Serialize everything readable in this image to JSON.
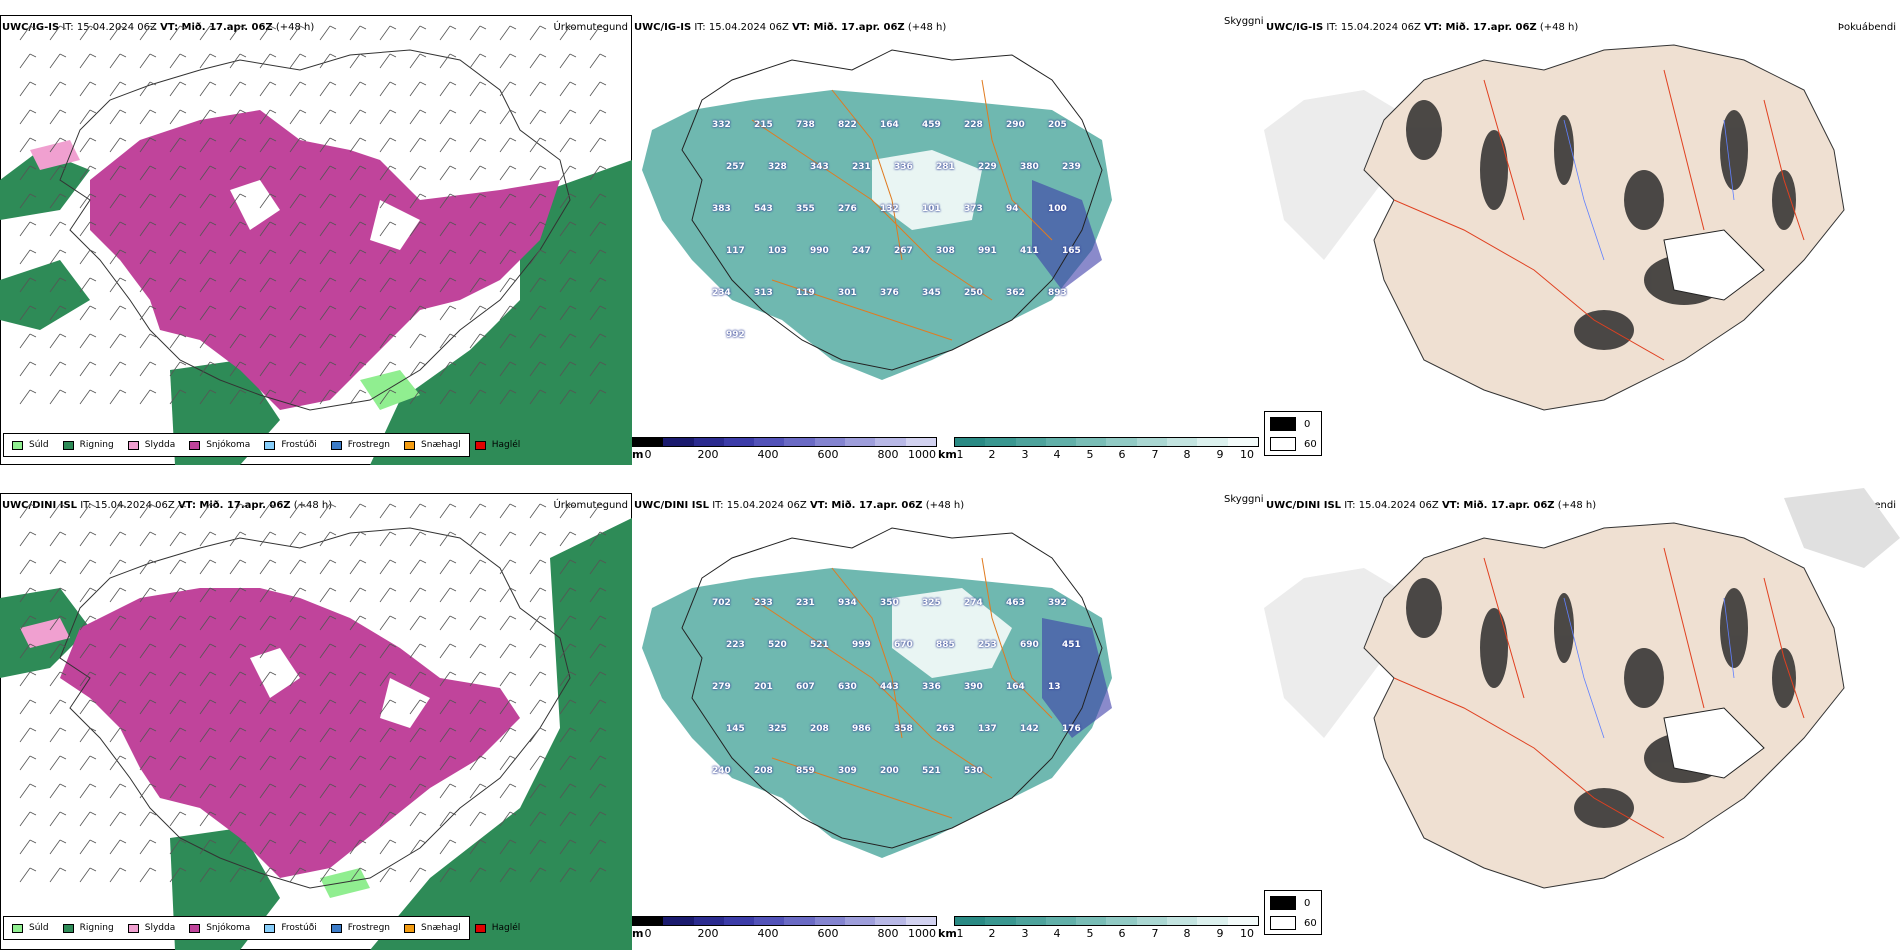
{
  "rows": [
    {
      "model": "UWC/IG-IS",
      "it_label": "IT: 15.04.2024 06Z",
      "vt_label": "VT: Mið. 17.apr. 06Z",
      "lead": "(+48 h)"
    },
    {
      "model": "UWC/DINI ISL",
      "it_label": "IT: 15.04.2024 06Z",
      "vt_label": "VT: Mið. 17.apr. 06Z",
      "lead": "(+48 h)"
    }
  ],
  "panels": {
    "precip_type": {
      "title": "Úrkomutegund",
      "legend": [
        {
          "label": "Súld",
          "color": "#90ee90"
        },
        {
          "label": "Rigning",
          "color": "#2e8b57"
        },
        {
          "label": "Slydda",
          "color": "#f0a0d0"
        },
        {
          "label": "Snjókoma",
          "color": "#c0449b"
        },
        {
          "label": "Frostúði",
          "color": "#87cefa"
        },
        {
          "label": "Frostregn",
          "color": "#3c7cc8"
        },
        {
          "label": "Snæhagl",
          "color": "#f39c12"
        },
        {
          "label": "Haglél",
          "color": "#e00000"
        }
      ]
    },
    "cloud": {
      "title": "Skyggni",
      "ceiling_unit": "m",
      "ceiling_ticks": [
        "0",
        "200",
        "400",
        "600",
        "800",
        "1000"
      ],
      "vis_unit": "km",
      "vis_ticks": [
        "1",
        "2",
        "3",
        "4",
        "5",
        "6",
        "7",
        "8",
        "9",
        "10"
      ],
      "ceiling_colors": [
        "#000000",
        "#1a1a6e",
        "#2b2b8f",
        "#3c3ca8",
        "#5252b8",
        "#6a6ac4",
        "#8484d0",
        "#9e9edb",
        "#b8b8e6",
        "#d2d2f0"
      ],
      "vis_colors": [
        "#2a8a84",
        "#3a9790",
        "#4ea39c",
        "#62b0a9",
        "#79bdb6",
        "#91cac4",
        "#aad7d2",
        "#c3e4e0",
        "#dcf1ee",
        "#f3fbfa"
      ],
      "row1_numbers": [
        "332",
        "215",
        "738",
        "822",
        "164",
        "459",
        "228",
        "290",
        "205",
        "257",
        "328",
        "343",
        "231",
        "336",
        "281",
        "229",
        "380",
        "239",
        "383",
        "543",
        "355",
        "276",
        "132",
        "101",
        "373",
        "94",
        "100",
        "117",
        "103",
        "990",
        "247",
        "267",
        "308",
        "991",
        "411",
        "165",
        "234",
        "313",
        "119",
        "301",
        "376",
        "345",
        "250",
        "362",
        "893",
        "992"
      ],
      "row2_numbers": [
        "702",
        "233",
        "231",
        "934",
        "350",
        "325",
        "274",
        "463",
        "392",
        "223",
        "520",
        "521",
        "999",
        "670",
        "885",
        "253",
        "690",
        "451",
        "279",
        "201",
        "607",
        "630",
        "443",
        "336",
        "390",
        "164",
        "13",
        "145",
        "325",
        "208",
        "986",
        "358",
        "263",
        "137",
        "142",
        "176",
        "240",
        "208",
        "859",
        "309",
        "200",
        "521",
        "530"
      ]
    },
    "fog": {
      "title": "Þokuábendi",
      "legend": [
        {
          "label": "0",
          "color": "#000000"
        },
        {
          "label": "60",
          "color": "#ffffff"
        }
      ]
    }
  }
}
